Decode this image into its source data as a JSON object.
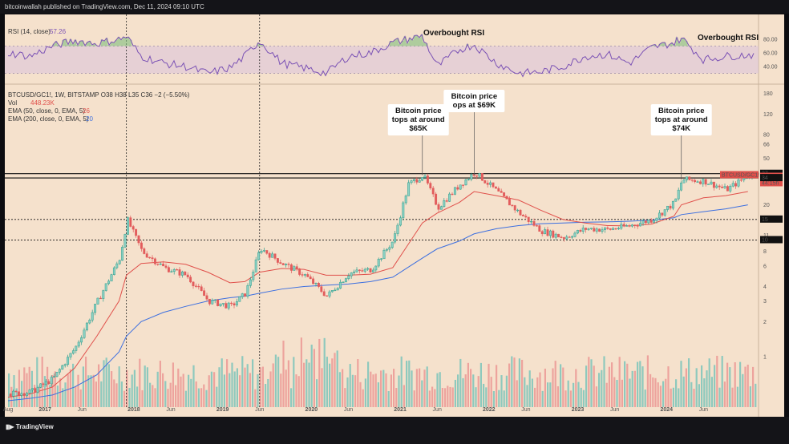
{
  "header": {
    "published": "bitcoinwallah published on TradingView.com, Dec 11, 2024 09:10 UTC"
  },
  "footer": {
    "brand": "TradingView"
  },
  "colors": {
    "bg": "#f5e1cc",
    "up": "#2e9e8d",
    "down": "#e25c5c",
    "ema50": "#e0504b",
    "ema200": "#3c6fe0",
    "rsi": "#7b52b5"
  },
  "chart_data": {
    "type": "line",
    "symbol_line": {
      "ticker": "BTCUSD/GC1!, 1W, BITSTAMP",
      "ohlc": "O38 H38 L35 C36 −2 (−5.50%)"
    },
    "vol_line": {
      "label": "Vol",
      "value": "448.23K"
    },
    "ema_lines": [
      {
        "label": "EMA (50, close, 0, EMA, 5)",
        "value": "26"
      },
      {
        "label": "EMA (200, close, 0, EMA, 5)",
        "value": "20"
      }
    ],
    "rsi_line": {
      "label": "RSI (14, close)",
      "value": "57.26"
    },
    "x_ticks": [
      "Aug",
      "2017",
      "Jun",
      "2018",
      "Jun",
      "2019",
      "Jun",
      "2020",
      "Jun",
      "2021",
      "Jun",
      "2022",
      "Jun",
      "2023",
      "Jun",
      "2024",
      "Jun"
    ],
    "y_ticks": [
      180,
      120,
      80,
      66,
      50,
      30,
      20,
      15,
      11,
      8,
      6,
      4,
      3,
      2,
      1
    ],
    "rsi_ticks": [
      80.0,
      60.0,
      40.0
    ],
    "price_markers": [
      {
        "label": "37",
        "value": 37,
        "style": "black"
      },
      {
        "label": "BTCUSD/GC1!",
        "value": 36,
        "style": "red"
      },
      {
        "label": "36",
        "value": 36,
        "style": "red"
      },
      {
        "label": "44:15h",
        "value": 33,
        "style": "red"
      },
      {
        "label": "34",
        "value": 34,
        "style": "black"
      },
      {
        "label": "15",
        "value": 15,
        "style": "black"
      },
      {
        "label": "10",
        "value": 10,
        "style": "black"
      }
    ],
    "hlines": [
      37,
      34,
      15,
      10
    ],
    "annotations": [
      {
        "lines": [
          "Bitcoin price",
          "tops at around",
          "$65K"
        ],
        "date": "2021-04"
      },
      {
        "lines": [
          "Bitcoin price",
          "ops at $69K"
        ],
        "date": "2021-11"
      },
      {
        "lines": [
          "Bitcoin price",
          "tops at around",
          "$74K"
        ],
        "date": "2024-03"
      }
    ],
    "rsi_annotations": [
      "Overbought RSI",
      "Overbought RSI"
    ],
    "series": [
      {
        "x": [
          "2016-08",
          "2016-11",
          "2017-02",
          "2017-05",
          "2017-08",
          "2017-11",
          "2017-12",
          "2018-02",
          "2018-05",
          "2018-08",
          "2018-11",
          "2019-02",
          "2019-04",
          "2019-06",
          "2019-09",
          "2019-12",
          "2020-03",
          "2020-06",
          "2020-09",
          "2020-12",
          "2021-02",
          "2021-04",
          "2021-06",
          "2021-09",
          "2021-11",
          "2022-02",
          "2022-05",
          "2022-08",
          "2022-11",
          "2023-02",
          "2023-05",
          "2023-08",
          "2023-11",
          "2024-02",
          "2024-03",
          "2024-06",
          "2024-09",
          "2024-12"
        ],
        "values": [
          0.48,
          0.5,
          0.65,
          1.2,
          3.0,
          7.0,
          15.0,
          8.0,
          5.8,
          5.0,
          3.0,
          2.7,
          3.5,
          8.5,
          6.3,
          5.0,
          3.3,
          5.2,
          5.6,
          10.0,
          30.0,
          36.0,
          19.0,
          30.0,
          38.0,
          26.0,
          17.0,
          12.0,
          10.5,
          12.5,
          12.3,
          13.3,
          15.0,
          21.0,
          33.0,
          32.0,
          27.0,
          36.0
        ]
      }
    ],
    "ema50": [
      0.45,
      0.48,
      0.55,
      0.8,
      1.5,
      3.0,
      5.0,
      6.3,
      6.5,
      6.2,
      5.3,
      4.3,
      4.4,
      5.3,
      5.7,
      5.6,
      5.0,
      5.0,
      5.1,
      5.8,
      9.0,
      14.0,
      17.0,
      21.0,
      26.0,
      24.0,
      22.0,
      18.0,
      15.0,
      14.0,
      13.3,
      13.2,
      13.7,
      16.0,
      20.0,
      23.0,
      24.0,
      26.0
    ],
    "ema200": [
      0.42,
      0.44,
      0.47,
      0.55,
      0.7,
      1.1,
      1.5,
      2.0,
      2.4,
      2.7,
      3.0,
      3.2,
      3.3,
      3.5,
      3.8,
      4.0,
      4.1,
      4.2,
      4.4,
      4.8,
      5.8,
      7.0,
      8.4,
      9.8,
      11.3,
      12.5,
      13.3,
      13.8,
      14.0,
      14.2,
      14.3,
      14.5,
      14.8,
      15.5,
      16.5,
      17.5,
      18.5,
      20.0
    ],
    "rsi": [
      60,
      55,
      70,
      78,
      74,
      80,
      84,
      55,
      45,
      40,
      30,
      38,
      55,
      78,
      45,
      38,
      30,
      55,
      60,
      75,
      80,
      85,
      40,
      65,
      72,
      45,
      30,
      32,
      40,
      55,
      58,
      45,
      68,
      75,
      82,
      50,
      55,
      57.26
    ]
  }
}
